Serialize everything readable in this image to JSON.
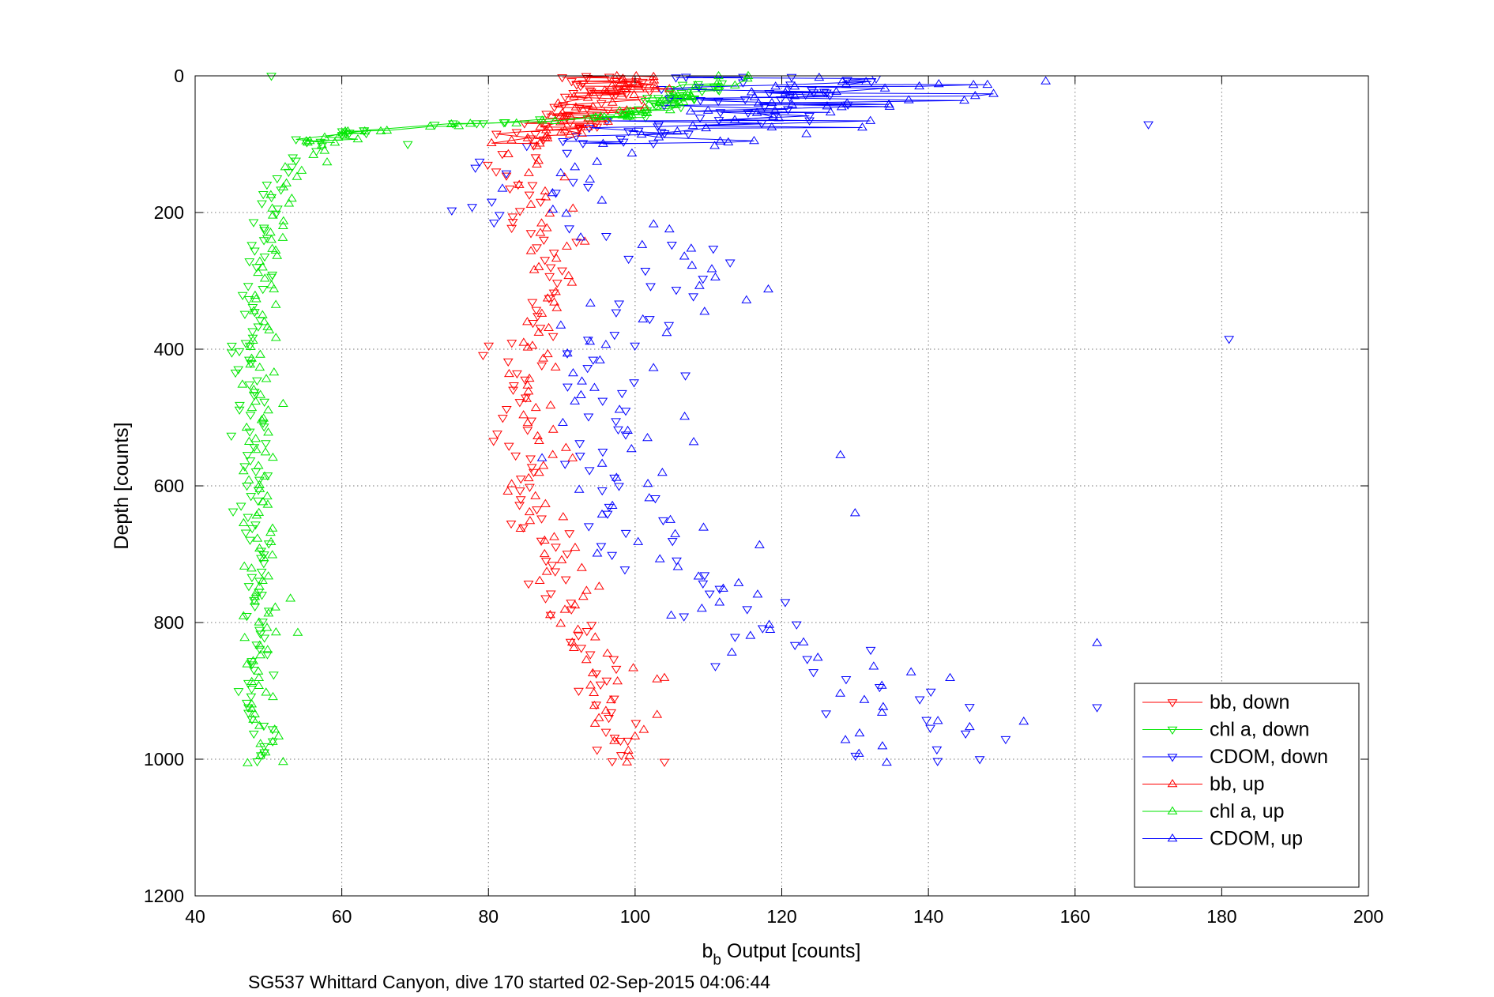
{
  "chart_data": {
    "type": "scatter",
    "title": "",
    "xlabel_main": "b",
    "xlabel_sub": "b",
    "xlabel_rest": " Output [counts]",
    "ylabel": "Depth [counts]",
    "caption": "SG537 Whittard Canyon, dive 170 started 02-Sep-2015 04:06:44",
    "xlim": [
      40,
      200
    ],
    "ylim": [
      0,
      1200
    ],
    "y_reversed": true,
    "x_ticks": [
      40,
      60,
      80,
      100,
      120,
      140,
      160,
      180,
      200
    ],
    "y_ticks": [
      0,
      200,
      400,
      600,
      800,
      1000,
      1200
    ],
    "x_tick_labels": [
      "40",
      "60",
      "80",
      "100",
      "120",
      "140",
      "160",
      "180",
      "200"
    ],
    "y_tick_labels": [
      "0",
      "200",
      "400",
      "600",
      "800",
      "1000",
      "1200"
    ],
    "grid": true,
    "legend_position": "bottom-right",
    "series": [
      {
        "name": "bb, down",
        "color": "#ff0000",
        "marker": "triangle-down",
        "connected_top": true,
        "profile": [
          [
            0,
            94
          ],
          [
            20,
            96
          ],
          [
            40,
            94
          ],
          [
            60,
            92
          ],
          [
            80,
            87
          ],
          [
            100,
            84
          ],
          [
            130,
            83
          ],
          [
            160,
            83
          ],
          [
            200,
            85
          ],
          [
            250,
            87
          ],
          [
            300,
            89
          ],
          [
            350,
            86
          ],
          [
            400,
            83
          ],
          [
            450,
            83
          ],
          [
            500,
            84
          ],
          [
            550,
            84
          ],
          [
            600,
            85
          ],
          [
            650,
            87
          ],
          [
            700,
            88
          ],
          [
            750,
            90
          ],
          [
            800,
            92
          ],
          [
            850,
            94
          ],
          [
            900,
            95
          ],
          [
            950,
            96
          ],
          [
            1005,
            97
          ]
        ],
        "spread": 2.6,
        "count": 110,
        "outliers": [
          [
            104,
            1004
          ],
          [
            92,
            243
          ],
          [
            99,
            973
          ],
          [
            86,
            160
          ]
        ]
      },
      {
        "name": "chl a, down",
        "color": "#00e600",
        "marker": "triangle-down",
        "connected_top": true,
        "profile": [
          [
            0,
            110
          ],
          [
            20,
            108
          ],
          [
            40,
            104
          ],
          [
            60,
            100
          ],
          [
            70,
            75
          ],
          [
            80,
            61
          ],
          [
            90,
            58
          ],
          [
            100,
            56
          ],
          [
            120,
            54
          ],
          [
            150,
            52
          ],
          [
            200,
            50
          ],
          [
            300,
            48
          ],
          [
            400,
            47
          ],
          [
            500,
            47
          ],
          [
            600,
            48
          ],
          [
            700,
            48
          ],
          [
            800,
            48
          ],
          [
            900,
            48
          ],
          [
            1005,
            49
          ]
        ],
        "spread": 1.6,
        "count": 130,
        "outliers": [
          [
            69,
            100
          ],
          [
            45,
            405
          ],
          [
            45,
            395
          ]
        ]
      },
      {
        "name": "CDOM, down",
        "color": "#0000ff",
        "marker": "triangle-down",
        "connected_top": true,
        "profile": [
          [
            0,
            118
          ],
          [
            30,
            120
          ],
          [
            60,
            110
          ],
          [
            90,
            98
          ],
          [
            110,
            88
          ],
          [
            150,
            82
          ],
          [
            190,
            78
          ],
          [
            250,
            100
          ],
          [
            300,
            110
          ],
          [
            350,
            104
          ],
          [
            400,
            96
          ],
          [
            450,
            96
          ],
          [
            500,
            100
          ],
          [
            550,
            96
          ],
          [
            600,
            96
          ],
          [
            650,
            98
          ],
          [
            700,
            100
          ],
          [
            750,
            106
          ],
          [
            800,
            114
          ],
          [
            850,
            122
          ],
          [
            900,
            130
          ],
          [
            950,
            140
          ],
          [
            1000,
            135
          ]
        ],
        "spread": 7,
        "count": 100,
        "outliers": [
          [
            170,
            71
          ],
          [
            181,
            385
          ],
          [
            163,
            924
          ],
          [
            75,
            197
          ],
          [
            147,
            1000
          ]
        ]
      },
      {
        "name": "bb, up",
        "color": "#ff0000",
        "marker": "triangle-up",
        "connected_top": true,
        "profile": [
          [
            0,
            98
          ],
          [
            20,
            99
          ],
          [
            40,
            96
          ],
          [
            60,
            93
          ],
          [
            80,
            90
          ],
          [
            100,
            86
          ],
          [
            150,
            85
          ],
          [
            200,
            89
          ],
          [
            250,
            90
          ],
          [
            300,
            88
          ],
          [
            350,
            86
          ],
          [
            400,
            86
          ],
          [
            450,
            87
          ],
          [
            500,
            86
          ],
          [
            550,
            87
          ],
          [
            600,
            86
          ],
          [
            650,
            88
          ],
          [
            700,
            89
          ],
          [
            750,
            91
          ],
          [
            800,
            92
          ],
          [
            850,
            94
          ],
          [
            900,
            96
          ],
          [
            950,
            97
          ],
          [
            1005,
            98
          ]
        ],
        "spread": 2.6,
        "count": 110,
        "outliers": [
          [
            103,
            935
          ],
          [
            103,
            883
          ],
          [
            86,
            395
          ],
          [
            104,
            881
          ]
        ]
      },
      {
        "name": "chl a, up",
        "color": "#00e600",
        "marker": "triangle-up",
        "connected_top": true,
        "profile": [
          [
            0,
            112
          ],
          [
            20,
            110
          ],
          [
            40,
            104
          ],
          [
            60,
            98
          ],
          [
            70,
            80
          ],
          [
            80,
            64
          ],
          [
            90,
            59
          ],
          [
            100,
            57
          ],
          [
            130,
            54
          ],
          [
            180,
            51
          ],
          [
            250,
            50
          ],
          [
            350,
            49
          ],
          [
            450,
            49
          ],
          [
            550,
            49
          ],
          [
            650,
            49
          ],
          [
            750,
            49
          ],
          [
            850,
            49
          ],
          [
            950,
            49
          ],
          [
            1005,
            49
          ]
        ],
        "spread": 1.6,
        "count": 130,
        "outliers": [
          [
            54,
            815
          ],
          [
            53,
            765
          ],
          [
            52,
            480
          ],
          [
            52,
            1004
          ]
        ]
      },
      {
        "name": "CDOM, up",
        "color": "#0000ff",
        "marker": "triangle-up",
        "connected_top": true,
        "profile": [
          [
            0,
            130
          ],
          [
            20,
            134
          ],
          [
            40,
            126
          ],
          [
            70,
            120
          ],
          [
            100,
            108
          ],
          [
            130,
            92
          ],
          [
            170,
            86
          ],
          [
            220,
            100
          ],
          [
            260,
            104
          ],
          [
            300,
            112
          ],
          [
            350,
            102
          ],
          [
            400,
            96
          ],
          [
            450,
            96
          ],
          [
            500,
            96
          ],
          [
            550,
            98
          ],
          [
            600,
            98
          ],
          [
            650,
            100
          ],
          [
            700,
            104
          ],
          [
            750,
            108
          ],
          [
            800,
            116
          ],
          [
            850,
            124
          ],
          [
            900,
            134
          ],
          [
            950,
            140
          ],
          [
            1000,
            132
          ]
        ],
        "spread": 7,
        "count": 100,
        "outliers": [
          [
            156,
            8
          ],
          [
            163,
            830
          ],
          [
            153,
            945
          ],
          [
            130,
            640
          ],
          [
            128,
            555
          ]
        ]
      }
    ]
  }
}
